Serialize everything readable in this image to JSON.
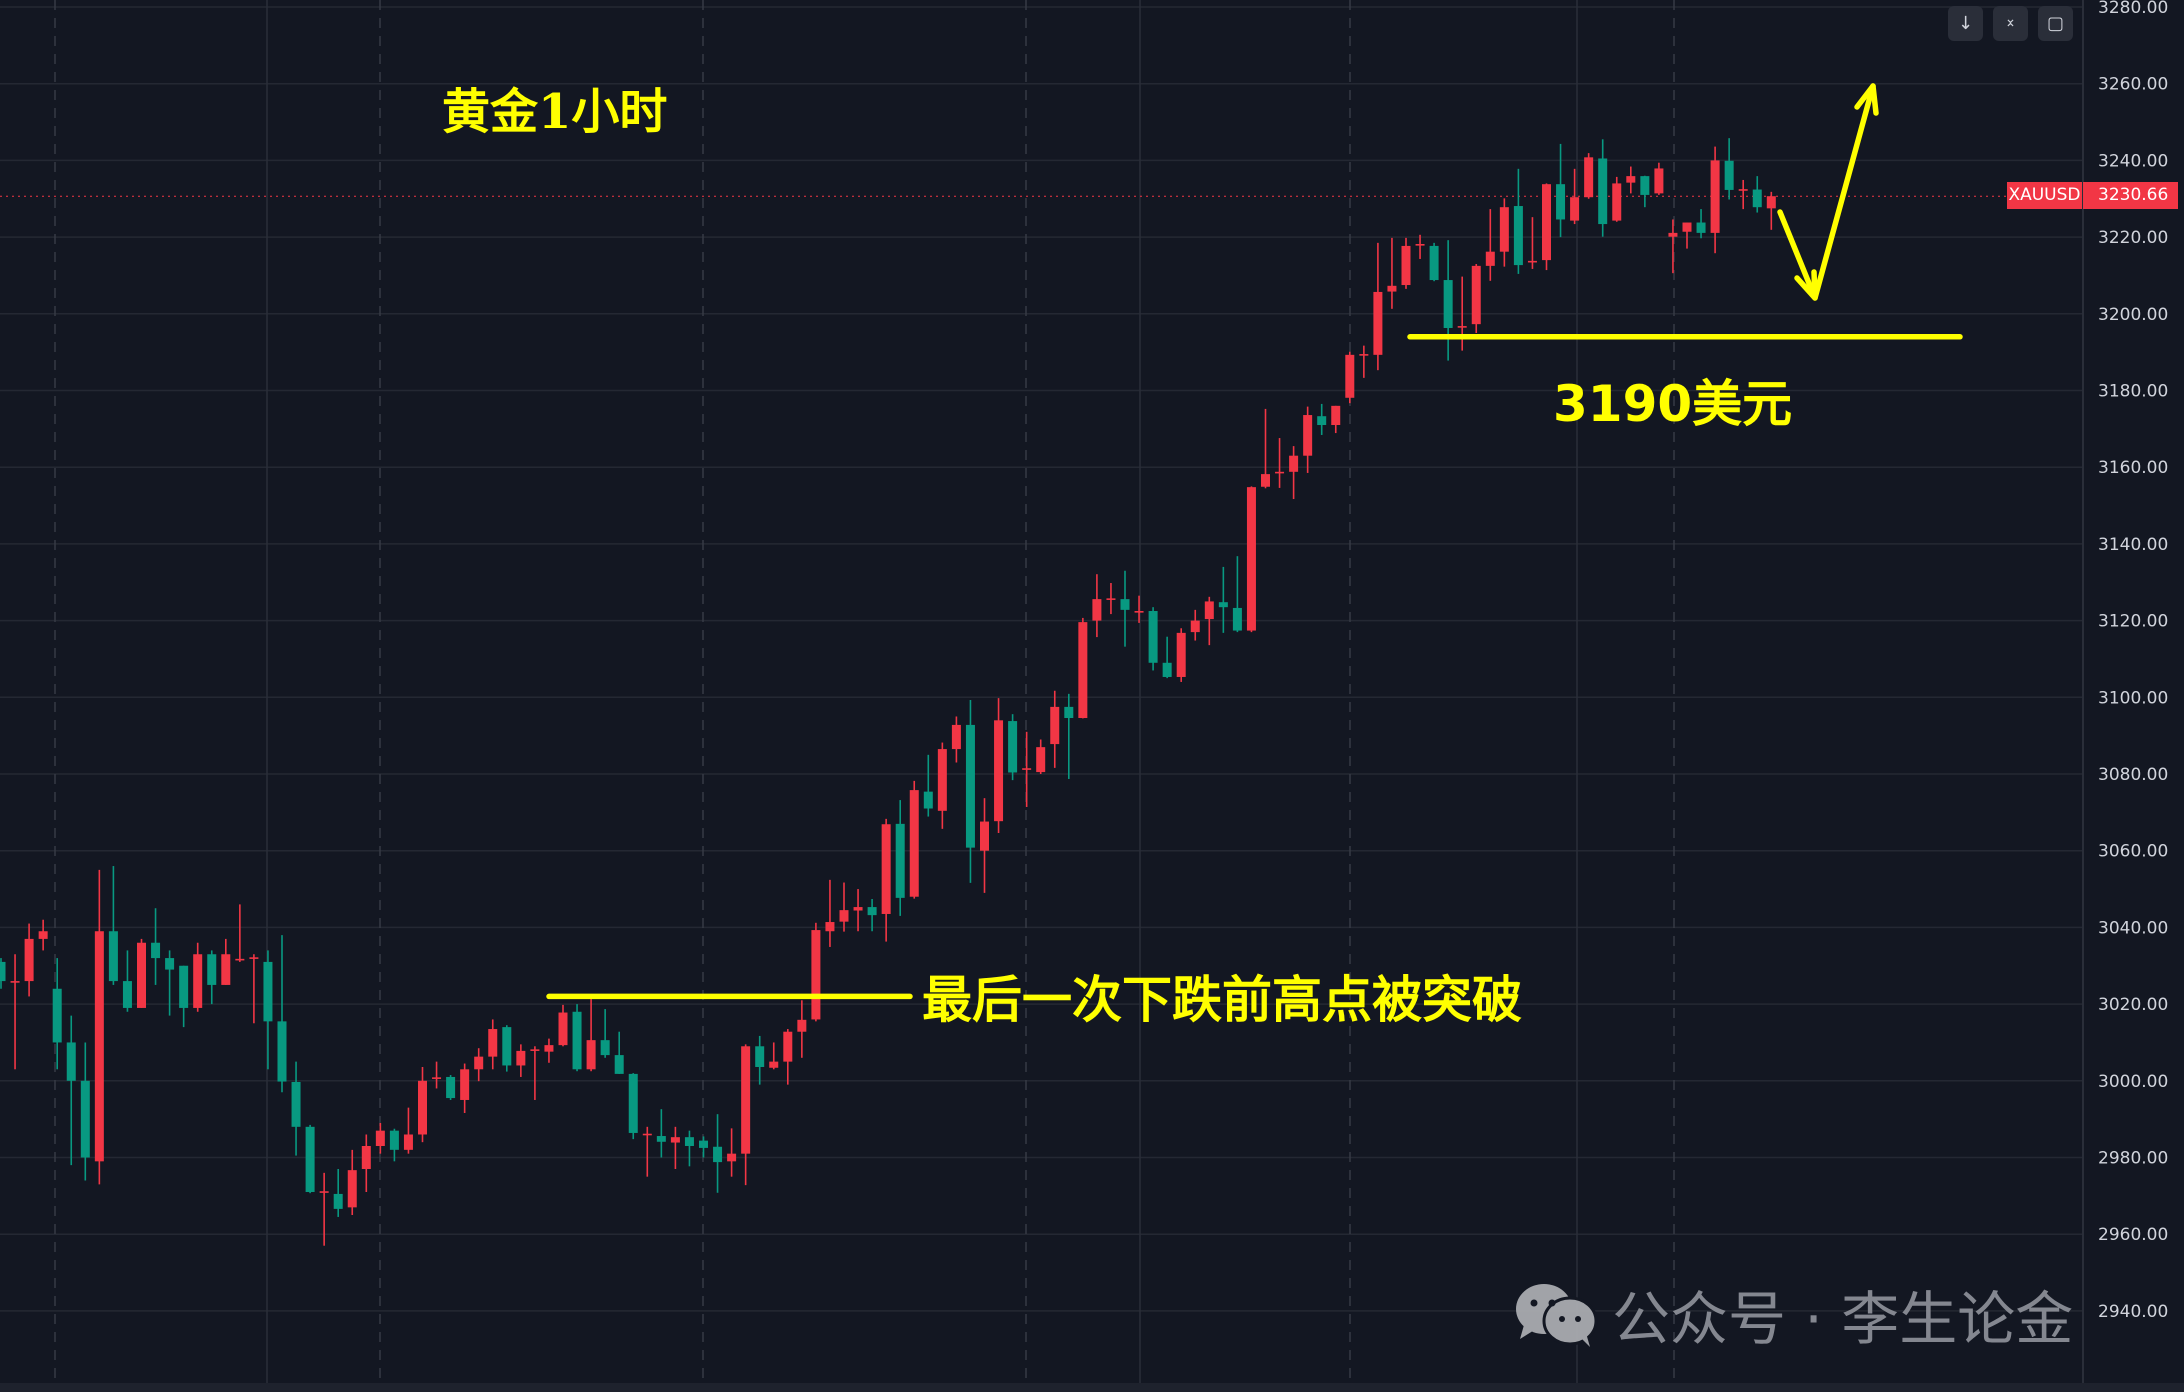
{
  "chart_data": {
    "type": "candlestick",
    "symbol": "XAUUSD",
    "last_price": "3230.66",
    "ylim": [
      2940,
      3280
    ],
    "yticks": [
      "3280.00",
      "3260.00",
      "3240.00",
      "3220.00",
      "3200.00",
      "3180.00",
      "3160.00",
      "3140.00",
      "3120.00",
      "3100.00",
      "3080.00",
      "3060.00",
      "3040.00",
      "3020.00",
      "3000.00",
      "2980.00",
      "2960.00",
      "2940.00"
    ],
    "grid": true,
    "colors": {
      "up": "#f23645",
      "down": "#089981",
      "background": "#131722",
      "annotation": "#ffff00"
    },
    "ohlc": [
      [
        3031,
        3032,
        3024,
        3026
      ],
      [
        3026,
        3033,
        3003,
        3026
      ],
      [
        3026,
        3041,
        3022,
        3037
      ],
      [
        3037,
        3042,
        3034,
        3039
      ],
      [
        3024,
        3032,
        3003,
        3010
      ],
      [
        3010,
        3017,
        2978,
        3000
      ],
      [
        3000,
        3010,
        2974,
        2980
      ],
      [
        2979,
        3055,
        2973,
        3039
      ],
      [
        3039,
        3056,
        3025,
        3026
      ],
      [
        3026,
        3034,
        3018,
        3019
      ],
      [
        3019,
        3037,
        3019,
        3036
      ],
      [
        3036,
        3045,
        3025,
        3032
      ],
      [
        3032,
        3034,
        3017,
        3029
      ],
      [
        3030,
        3030,
        3014,
        3019
      ],
      [
        3019,
        3036,
        3018,
        3033
      ],
      [
        3033,
        3034,
        3020,
        3025
      ],
      [
        3025,
        3037,
        3025,
        3033
      ],
      [
        3031.5,
        3046,
        3031,
        3031.8
      ],
      [
        3032,
        3033,
        3015,
        3032.2
      ],
      [
        3031,
        3034,
        3003,
        3015.5
      ],
      [
        3015.5,
        3038,
        2997,
        2999.8
      ],
      [
        2999.7,
        3005,
        2980.5,
        2988
      ],
      [
        2988,
        2988.5,
        2970.7,
        2971
      ],
      [
        2971,
        2976,
        2957,
        2971.2
      ],
      [
        2970.5,
        2977,
        2964.5,
        2966.6
      ],
      [
        2967,
        2982,
        2965,
        2976.7
      ],
      [
        2977,
        2986,
        2971,
        2983
      ],
      [
        2983,
        2989,
        2981,
        2987
      ],
      [
        2987,
        2987.5,
        2979,
        2982
      ],
      [
        2982,
        2993,
        2981,
        2986
      ],
      [
        2986,
        3003.6,
        2984,
        3000
      ],
      [
        3000.8,
        3005,
        2998,
        3000.9
      ],
      [
        3001,
        3001.5,
        2995,
        2995.5
      ],
      [
        2995,
        3004.5,
        2991.6,
        3003
      ],
      [
        3003,
        3008.5,
        2999.9,
        3006.3
      ],
      [
        3006.3,
        3016,
        3003,
        3013.5
      ],
      [
        3014,
        3014.5,
        3002.4,
        3004
      ],
      [
        3004,
        3009.5,
        3001,
        3007.8
      ],
      [
        3008,
        3009,
        2995,
        3008.2
      ],
      [
        3007.6,
        3011,
        3004.7,
        3009.3
      ],
      [
        3009.3,
        3019.8,
        3009,
        3017.8
      ],
      [
        3018,
        3020,
        3002.5,
        3003
      ],
      [
        3003,
        3022.4,
        3002.5,
        3010.6
      ],
      [
        3010.6,
        3018.7,
        3006,
        3006.7
      ],
      [
        3006.7,
        3012.8,
        3001.8,
        3001.8
      ],
      [
        3001.8,
        3002,
        2984.8,
        2986.4
      ],
      [
        2986,
        2988,
        2975,
        2986.2
      ],
      [
        2985.6,
        2992.6,
        2980,
        2984.1
      ],
      [
        2983.9,
        2988,
        2977,
        2985.3
      ],
      [
        2985.3,
        2987,
        2977.7,
        2983
      ],
      [
        2984.4,
        2985.5,
        2980,
        2982.5
      ],
      [
        2982.8,
        2991.3,
        2970.8,
        2978.8
      ],
      [
        2979,
        2987.6,
        2975,
        2981
      ],
      [
        2981,
        3009.5,
        2972.8,
        3009
      ],
      [
        3009,
        3011.7,
        2999,
        3003.6
      ],
      [
        3003.4,
        3010,
        3003,
        3005
      ],
      [
        3005,
        3013.5,
        2999,
        3012.8
      ],
      [
        3012.8,
        3021,
        3006,
        3015.9
      ],
      [
        3016,
        3041.2,
        3015.5,
        3039.3
      ],
      [
        3039,
        3052.4,
        3034.9,
        3041.4
      ],
      [
        3041.5,
        3051.7,
        3038.9,
        3044.5
      ],
      [
        3044.4,
        3050,
        3039,
        3045.3
      ],
      [
        3045.3,
        3047.4,
        3039,
        3043.2
      ],
      [
        3043.5,
        3068.3,
        3036.3,
        3066.9
      ],
      [
        3067,
        3073.2,
        3043,
        3047.7
      ],
      [
        3048,
        3078.2,
        3047.5,
        3075.8
      ],
      [
        3075.4,
        3085,
        3068.9,
        3071
      ],
      [
        3070.4,
        3088.2,
        3065.7,
        3086.5
      ],
      [
        3086.5,
        3095,
        3083,
        3092.8
      ],
      [
        3092.8,
        3099.3,
        3051.6,
        3060.8
      ],
      [
        3060,
        3073.7,
        3049,
        3067.6
      ],
      [
        3067.7,
        3099.8,
        3064.6,
        3094
      ],
      [
        3093.8,
        3095.6,
        3078.4,
        3080.4
      ],
      [
        3081.3,
        3091,
        3071.4,
        3081.5
      ],
      [
        3080.5,
        3089,
        3080,
        3087
      ],
      [
        3087.8,
        3101.7,
        3081.6,
        3097.5
      ],
      [
        3097.5,
        3100.9,
        3078.7,
        3094.6
      ],
      [
        3094.6,
        3120.7,
        3094.5,
        3119.6
      ],
      [
        3120,
        3132.1,
        3115.7,
        3125.6
      ],
      [
        3125.6,
        3129.8,
        3121.7,
        3125.8
      ],
      [
        3125.6,
        3133,
        3113.2,
        3122.8
      ],
      [
        3122.3,
        3126.5,
        3119.4,
        3122.5
      ],
      [
        3122.5,
        3123.5,
        3107,
        3109
      ],
      [
        3109,
        3115.8,
        3105,
        3105.3
      ],
      [
        3105.3,
        3118,
        3104,
        3116.8
      ],
      [
        3117,
        3122.8,
        3114.8,
        3120
      ],
      [
        3120.4,
        3126.2,
        3113.6,
        3125
      ],
      [
        3124.8,
        3134,
        3116.8,
        3123.5
      ],
      [
        3123.3,
        3136.8,
        3117,
        3117.4
      ],
      [
        3117.4,
        3155,
        3117,
        3154.8
      ],
      [
        3154.9,
        3175.2,
        3154.5,
        3158.2
      ],
      [
        3158.6,
        3167.6,
        3154.6,
        3158.8
      ],
      [
        3158.8,
        3165.5,
        3151.7,
        3163
      ],
      [
        3163,
        3175.8,
        3158.5,
        3173.6
      ],
      [
        3173.3,
        3176.5,
        3168.4,
        3171
      ],
      [
        3171,
        3176,
        3168.9,
        3176
      ],
      [
        3178.1,
        3190.1,
        3176.7,
        3189.3
      ],
      [
        3189.3,
        3191.7,
        3183.3,
        3189.5
      ],
      [
        3189.3,
        3218.5,
        3185.3,
        3205.7
      ],
      [
        3205.8,
        3219.8,
        3201.3,
        3207.3
      ],
      [
        3207.5,
        3219.8,
        3206.5,
        3217.7
      ],
      [
        3218,
        3220.6,
        3214.3,
        3218.2
      ],
      [
        3217.7,
        3218.5,
        3208.5,
        3208.8
      ],
      [
        3208.8,
        3219.2,
        3187.8,
        3196.3
      ],
      [
        3196.6,
        3209.7,
        3190.4,
        3196.8
      ],
      [
        3197.3,
        3213,
        3195,
        3212.5
      ],
      [
        3212.5,
        3227.3,
        3208.6,
        3216.2
      ],
      [
        3216.2,
        3230.1,
        3212.3,
        3227.8
      ],
      [
        3228.1,
        3237.8,
        3210.4,
        3212.7
      ],
      [
        3213.6,
        3225.2,
        3211.7,
        3213.8
      ],
      [
        3214,
        3234,
        3211.4,
        3233.8
      ],
      [
        3233.8,
        3244.3,
        3220,
        3224.6
      ],
      [
        3224.3,
        3237.8,
        3223.4,
        3230.4
      ],
      [
        3230.4,
        3241.9,
        3230,
        3240.8
      ],
      [
        3240.5,
        3245.5,
        3220.1,
        3223.4
      ],
      [
        3224.3,
        3235.7,
        3224,
        3234
      ],
      [
        3234.2,
        3238.4,
        3231.4,
        3235.9
      ],
      [
        3235.9,
        3236,
        3227.8,
        3231
      ],
      [
        3231.4,
        3239.4,
        3231,
        3237.9
      ],
      [
        3220.1,
        3224.6,
        3210.6,
        3221.1
      ],
      [
        3221.4,
        3223.8,
        3217,
        3223.8
      ],
      [
        3223.8,
        3227.3,
        3219.7,
        3221.1
      ],
      [
        3221.1,
        3243.6,
        3215.8,
        3240
      ],
      [
        3239.9,
        3245.8,
        3229.8,
        3232.3
      ],
      [
        3232.3,
        3234.9,
        3227.3,
        3232.5
      ],
      [
        3232.4,
        3235.9,
        3226.4,
        3227.8
      ],
      [
        3227.5,
        3231.8,
        3221.9,
        3230.66
      ]
    ],
    "annotations": {
      "title": "黄金1小时",
      "support_label": "3190美元",
      "support_price": 3194,
      "breakout_label": "最后一次下跌前高点被突破",
      "breakout_price": 3022
    }
  },
  "toolbar": {
    "icons": [
      "arrow-down-icon",
      "collapse-icon",
      "fullscreen-icon"
    ],
    "glyphs": [
      "↓",
      "⨯",
      "▢"
    ]
  },
  "watermark": {
    "text": "公众号 · 李生论金",
    "icon": "wechat-icon"
  }
}
